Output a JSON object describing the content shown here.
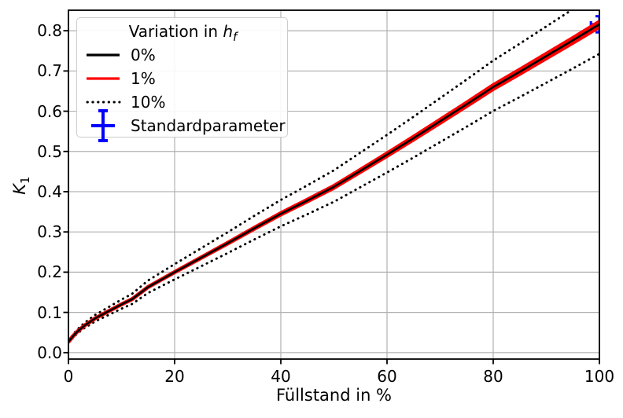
{
  "figure": {
    "xlabel": "Füllstand in %",
    "ylabel_base": "K",
    "ylabel_sub": "1"
  },
  "legend": {
    "title_prefix": "Variation in ",
    "title_var": "h",
    "title_var_sub": "f",
    "entries": [
      {
        "label": "0%",
        "style": "solid-black"
      },
      {
        "label": "1%",
        "style": "solid-red"
      },
      {
        "label": "10%",
        "style": "dotted-black"
      },
      {
        "label": "Standardparameter",
        "style": "errorbar-blue"
      }
    ]
  },
  "colors": {
    "base_line": "#000000",
    "one_percent": "#ff0000",
    "ten_percent": "#000000",
    "standardparameter": "#0000ff",
    "grid": "#b0b0b0",
    "legend_border": "#cccccc"
  },
  "chart_data": {
    "type": "line",
    "title": "",
    "xlabel": "Füllstand in %",
    "ylabel": "K_1",
    "xlim": [
      0,
      100
    ],
    "ylim": [
      -0.016,
      0.851
    ],
    "grid": true,
    "legend_position": "upper left",
    "legend_title": "Variation in h_f",
    "x_ticks": [
      0,
      20,
      40,
      60,
      80,
      100
    ],
    "y_ticks": [
      "0.0",
      "0.1",
      "0.2",
      "0.3",
      "0.4",
      "0.5",
      "0.6",
      "0.7",
      "0.8"
    ],
    "y_tick_values": [
      0.0,
      0.1,
      0.2,
      0.3,
      0.4,
      0.5,
      0.6,
      0.7,
      0.8
    ],
    "x": [
      0,
      0.5,
      1,
      1.5,
      2,
      3,
      4,
      5,
      6,
      8,
      10,
      12,
      15,
      20,
      25,
      30,
      35,
      40,
      45,
      50,
      55,
      60,
      65,
      70,
      75,
      80,
      85,
      90,
      95,
      100
    ],
    "k1_base": [
      0.027,
      0.035,
      0.043,
      0.05,
      0.056,
      0.067,
      0.076,
      0.085,
      0.092,
      0.106,
      0.12,
      0.133,
      0.163,
      0.2,
      0.236,
      0.272,
      0.309,
      0.345,
      0.378,
      0.412,
      0.452,
      0.492,
      0.533,
      0.575,
      0.617,
      0.66,
      0.698,
      0.737,
      0.776,
      0.816
    ],
    "series": [
      {
        "name": "0%",
        "color": "#000000",
        "linestyle": "solid",
        "scales": [
          1.0
        ]
      },
      {
        "name": "1%",
        "color": "#ff0000",
        "linestyle": "solid",
        "scales": [
          0.99,
          1.0,
          1.01
        ]
      },
      {
        "name": "10%",
        "color": "#000000",
        "linestyle": "dotted",
        "scales": [
          0.91,
          1.1
        ]
      }
    ],
    "errorbar": {
      "name": "Standardparameter",
      "color": "#0000ff",
      "x": 100,
      "y": 0.816,
      "yerr": 0.02,
      "xerr": 1.6
    }
  }
}
